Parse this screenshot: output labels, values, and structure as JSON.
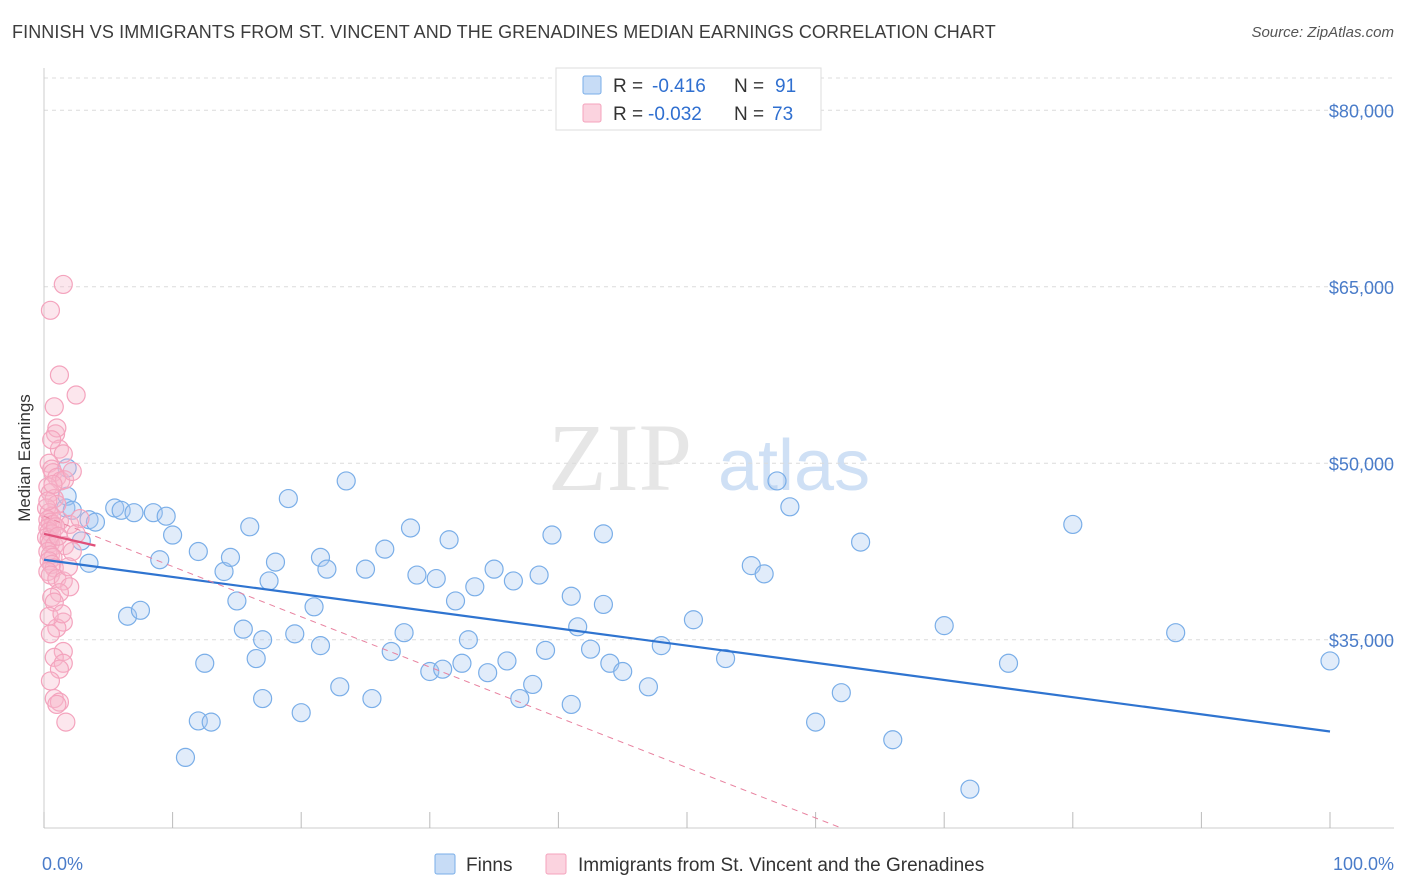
{
  "header": {
    "title": "FINNISH VS IMMIGRANTS FROM ST. VINCENT AND THE GRENADINES MEDIAN EARNINGS CORRELATION CHART",
    "source": "Source: ZipAtlas.com"
  },
  "watermark": {
    "zip": "ZIP",
    "atlas": "atlas"
  },
  "legend": {
    "rows": [
      {
        "r_label": "R =",
        "r_value": "-0.416",
        "n_label": "N =",
        "n_value": "91",
        "color": "#a8c8f0"
      },
      {
        "r_label": "R =",
        "r_value": "-0.032",
        "n_label": "N =",
        "n_value": "73",
        "color": "#f7b8cb"
      }
    ]
  },
  "bottom_legend": {
    "series1": "Finns",
    "series2": "Immigrants from St. Vincent and the Grenadines"
  },
  "chart_data": {
    "type": "scatter",
    "title": "FINNISH VS IMMIGRANTS FROM ST. VINCENT AND THE GRENADINES MEDIAN EARNINGS CORRELATION CHART",
    "ylabel": "Median Earnings",
    "xlabel": "",
    "xlim": [
      0,
      100
    ],
    "ylim": [
      19000,
      83000
    ],
    "x_tick_labels": [
      "0.0%",
      "100.0%"
    ],
    "y_ticks": [
      {
        "value": 35000,
        "label": "$35,000"
      },
      {
        "value": 50000,
        "label": "$50,000"
      },
      {
        "value": 65000,
        "label": "$65,000"
      },
      {
        "value": 80000,
        "label": "$80,000"
      }
    ],
    "grid": true,
    "series": [
      {
        "name": "Finns",
        "color": "#7aaee8",
        "trend": {
          "x": [
            0,
            100
          ],
          "y": [
            41800,
            27200
          ]
        },
        "points": [
          [
            1.7,
            46.2
          ],
          [
            1.8,
            49.6
          ],
          [
            1.8,
            47.2
          ],
          [
            2.2,
            46.0
          ],
          [
            3.5,
            45.2
          ],
          [
            4.0,
            45.0
          ],
          [
            2.9,
            43.4
          ],
          [
            5.5,
            46.2
          ],
          [
            6.0,
            46.0
          ],
          [
            7.0,
            45.8
          ],
          [
            8.5,
            45.8
          ],
          [
            9.5,
            45.5
          ],
          [
            10.0,
            43.9
          ],
          [
            12.0,
            42.5
          ],
          [
            14.0,
            40.8
          ],
          [
            15.0,
            38.3
          ],
          [
            14.5,
            42.0
          ],
          [
            16.0,
            44.6
          ],
          [
            17.5,
            40.0
          ],
          [
            18.0,
            41.6
          ],
          [
            19.0,
            47.0
          ],
          [
            21.5,
            42.0
          ],
          [
            22.0,
            41.0
          ],
          [
            23.5,
            48.5
          ],
          [
            25.0,
            41.0
          ],
          [
            26.5,
            42.7
          ],
          [
            28.5,
            44.5
          ],
          [
            29.0,
            40.5
          ],
          [
            30.5,
            40.2
          ],
          [
            31.5,
            43.5
          ],
          [
            32.0,
            38.3
          ],
          [
            33.5,
            39.5
          ],
          [
            35.0,
            41.0
          ],
          [
            36.5,
            40.0
          ],
          [
            38.5,
            40.5
          ],
          [
            39.5,
            43.9
          ],
          [
            41.0,
            38.7
          ],
          [
            3.5,
            41.5
          ],
          [
            6.5,
            37.0
          ],
          [
            7.5,
            37.5
          ],
          [
            9.0,
            41.8
          ],
          [
            12.5,
            33.0
          ],
          [
            15.5,
            35.9
          ],
          [
            16.5,
            33.4
          ],
          [
            17.0,
            35.0
          ],
          [
            19.5,
            35.5
          ],
          [
            21.0,
            37.8
          ],
          [
            21.5,
            34.5
          ],
          [
            23.0,
            31.0
          ],
          [
            25.5,
            30.0
          ],
          [
            27.0,
            34.0
          ],
          [
            28.0,
            35.6
          ],
          [
            30.0,
            32.3
          ],
          [
            31.0,
            32.5
          ],
          [
            32.5,
            33.0
          ],
          [
            33.0,
            35.0
          ],
          [
            34.5,
            32.2
          ],
          [
            36.0,
            33.2
          ],
          [
            37.0,
            30.0
          ],
          [
            38.0,
            31.2
          ],
          [
            39.0,
            34.1
          ],
          [
            41.5,
            36.1
          ],
          [
            42.5,
            34.2
          ],
          [
            43.5,
            38.0
          ],
          [
            44.0,
            33.0
          ],
          [
            45.0,
            32.3
          ],
          [
            47.0,
            31.0
          ],
          [
            48.0,
            34.5
          ],
          [
            50.5,
            36.7
          ],
          [
            53.0,
            33.4
          ],
          [
            55.0,
            41.3
          ],
          [
            56.0,
            40.6
          ],
          [
            57.0,
            48.5
          ],
          [
            58.0,
            46.3
          ],
          [
            60.0,
            28.0
          ],
          [
            62.0,
            30.5
          ],
          [
            63.5,
            43.3
          ],
          [
            66.0,
            26.5
          ],
          [
            70.0,
            36.2
          ],
          [
            72.0,
            22.3
          ],
          [
            75.0,
            33.0
          ],
          [
            80.0,
            44.8
          ],
          [
            88.0,
            35.6
          ],
          [
            100.0,
            33.2
          ],
          [
            11.0,
            25.0
          ],
          [
            12.0,
            28.1
          ],
          [
            13.0,
            28.0
          ],
          [
            17.0,
            30.0
          ],
          [
            20.0,
            28.8
          ],
          [
            41.0,
            29.5
          ],
          [
            43.5,
            44.0
          ]
        ]
      },
      {
        "name": "Immigrants from St. Vincent and the Grenadines",
        "color": "#f4a3bd",
        "trend": {
          "x": [
            0,
            4
          ],
          "y": [
            44000,
            43000
          ]
        },
        "trend_dashed": {
          "x": [
            0,
            62
          ],
          "y": [
            45500,
            19000
          ]
        },
        "points": [
          [
            0.5,
            63.0
          ],
          [
            1.5,
            65.2
          ],
          [
            1.2,
            57.5
          ],
          [
            2.5,
            55.8
          ],
          [
            0.8,
            54.8
          ],
          [
            0.9,
            52.5
          ],
          [
            1.0,
            53.0
          ],
          [
            1.2,
            51.2
          ],
          [
            1.5,
            50.8
          ],
          [
            0.4,
            50.0
          ],
          [
            0.6,
            49.5
          ],
          [
            0.7,
            49.2
          ],
          [
            1.0,
            48.8
          ],
          [
            1.3,
            48.5
          ],
          [
            1.6,
            48.6
          ],
          [
            0.3,
            48.0
          ],
          [
            0.5,
            47.5
          ],
          [
            0.8,
            47.0
          ],
          [
            1.0,
            46.5
          ],
          [
            0.2,
            46.2
          ],
          [
            0.4,
            45.8
          ],
          [
            0.6,
            45.5
          ],
          [
            0.3,
            45.2
          ],
          [
            0.5,
            45.0
          ],
          [
            0.7,
            44.8
          ],
          [
            1.2,
            45.1
          ],
          [
            2.0,
            44.8
          ],
          [
            0.3,
            44.5
          ],
          [
            0.4,
            44.2
          ],
          [
            0.6,
            44.0
          ],
          [
            0.2,
            43.7
          ],
          [
            0.4,
            43.5
          ],
          [
            0.5,
            43.2
          ],
          [
            0.8,
            43.0
          ],
          [
            1.6,
            43.0
          ],
          [
            2.8,
            45.3
          ],
          [
            2.5,
            44.0
          ],
          [
            0.3,
            42.5
          ],
          [
            0.5,
            42.2
          ],
          [
            0.7,
            42.0
          ],
          [
            0.4,
            41.7
          ],
          [
            0.6,
            41.4
          ],
          [
            0.8,
            41.1
          ],
          [
            0.3,
            40.8
          ],
          [
            0.5,
            40.5
          ],
          [
            1.0,
            40.2
          ],
          [
            1.5,
            40.0
          ],
          [
            2.0,
            39.5
          ],
          [
            1.2,
            39.0
          ],
          [
            0.6,
            38.6
          ],
          [
            0.8,
            38.2
          ],
          [
            1.5,
            36.5
          ],
          [
            1.0,
            36.0
          ],
          [
            0.5,
            35.5
          ],
          [
            1.5,
            34.0
          ],
          [
            0.8,
            33.5
          ],
          [
            1.5,
            33.0
          ],
          [
            1.2,
            32.5
          ],
          [
            0.5,
            31.5
          ],
          [
            0.8,
            30.0
          ],
          [
            1.2,
            29.7
          ],
          [
            1.0,
            29.5
          ],
          [
            1.7,
            28.0
          ],
          [
            0.3,
            46.8
          ],
          [
            0.9,
            44.6
          ],
          [
            1.1,
            43.8
          ],
          [
            2.2,
            42.5
          ],
          [
            0.7,
            48.2
          ],
          [
            1.9,
            41.2
          ],
          [
            0.4,
            37.0
          ],
          [
            1.4,
            37.2
          ],
          [
            2.2,
            49.3
          ],
          [
            0.6,
            52.0
          ]
        ]
      }
    ]
  }
}
